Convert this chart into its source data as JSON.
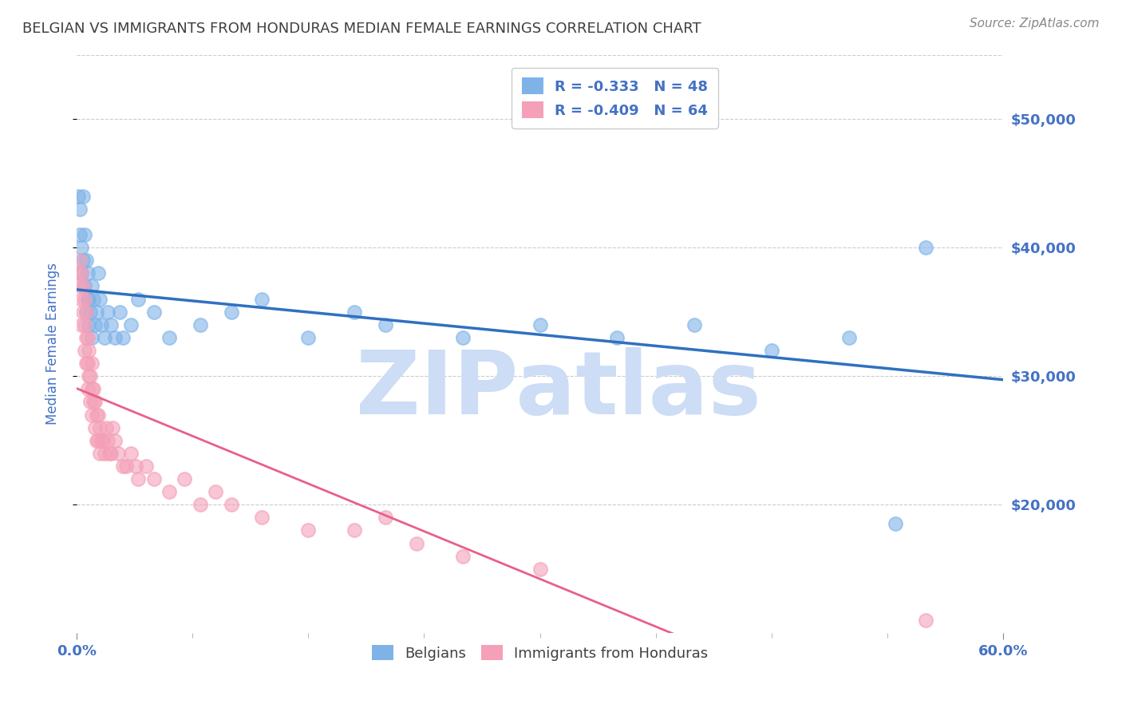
{
  "title": "BELGIAN VS IMMIGRANTS FROM HONDURAS MEDIAN FEMALE EARNINGS CORRELATION CHART",
  "source": "Source: ZipAtlas.com",
  "ylabel": "Median Female Earnings",
  "y_tick_labels": [
    "$20,000",
    "$30,000",
    "$40,000",
    "$50,000"
  ],
  "y_tick_values": [
    20000,
    30000,
    40000,
    50000
  ],
  "ylim": [
    10000,
    55000
  ],
  "xlim": [
    0.0,
    0.6
  ],
  "legend_labels": [
    "Belgians",
    "Immigrants from Honduras"
  ],
  "r_belgian": "-0.333",
  "n_belgian": "48",
  "r_honduras": "-0.409",
  "n_honduras": "64",
  "blue_scatter_color": "#7fb3e8",
  "pink_scatter_color": "#f4a0b8",
  "blue_line_color": "#3070c0",
  "pink_line_color": "#e8608a",
  "axis_label_color": "#4472c4",
  "title_color": "#404040",
  "watermark_text": "ZIPatlas",
  "watermark_color": "#ccddf5",
  "grid_color": "#cccccc",
  "background_color": "#ffffff",
  "belgians_x": [
    0.001,
    0.002,
    0.002,
    0.003,
    0.003,
    0.004,
    0.004,
    0.005,
    0.005,
    0.006,
    0.006,
    0.007,
    0.007,
    0.008,
    0.008,
    0.009,
    0.01,
    0.01,
    0.011,
    0.012,
    0.013,
    0.014,
    0.015,
    0.016,
    0.018,
    0.02,
    0.022,
    0.025,
    0.028,
    0.03,
    0.035,
    0.04,
    0.05,
    0.06,
    0.08,
    0.1,
    0.12,
    0.15,
    0.18,
    0.2,
    0.25,
    0.3,
    0.35,
    0.4,
    0.45,
    0.5,
    0.53,
    0.55
  ],
  "belgians_y": [
    44000,
    43000,
    41000,
    40000,
    38000,
    44000,
    39000,
    41000,
    37000,
    35000,
    39000,
    36000,
    38000,
    34000,
    36000,
    35000,
    37000,
    33000,
    36000,
    34000,
    35000,
    38000,
    36000,
    34000,
    33000,
    35000,
    34000,
    33000,
    35000,
    33000,
    34000,
    36000,
    35000,
    33000,
    34000,
    35000,
    36000,
    33000,
    35000,
    34000,
    33000,
    34000,
    33000,
    34000,
    32000,
    33000,
    18500,
    40000
  ],
  "honduras_x": [
    0.001,
    0.002,
    0.002,
    0.003,
    0.003,
    0.003,
    0.004,
    0.004,
    0.005,
    0.005,
    0.005,
    0.006,
    0.006,
    0.006,
    0.007,
    0.007,
    0.007,
    0.008,
    0.008,
    0.009,
    0.009,
    0.01,
    0.01,
    0.01,
    0.011,
    0.011,
    0.012,
    0.012,
    0.013,
    0.013,
    0.014,
    0.014,
    0.015,
    0.015,
    0.016,
    0.017,
    0.018,
    0.019,
    0.02,
    0.021,
    0.022,
    0.023,
    0.025,
    0.027,
    0.03,
    0.032,
    0.035,
    0.038,
    0.04,
    0.045,
    0.05,
    0.06,
    0.07,
    0.08,
    0.09,
    0.1,
    0.12,
    0.15,
    0.18,
    0.2,
    0.22,
    0.25,
    0.3,
    0.55
  ],
  "honduras_y": [
    38000,
    39000,
    37000,
    38000,
    36000,
    34000,
    37000,
    35000,
    36000,
    34000,
    32000,
    35000,
    33000,
    31000,
    33000,
    31000,
    29000,
    32000,
    30000,
    30000,
    28000,
    31000,
    29000,
    27000,
    29000,
    28000,
    28000,
    26000,
    27000,
    25000,
    27000,
    25000,
    26000,
    24000,
    25000,
    25000,
    24000,
    26000,
    25000,
    24000,
    24000,
    26000,
    25000,
    24000,
    23000,
    23000,
    24000,
    23000,
    22000,
    23000,
    22000,
    21000,
    22000,
    20000,
    21000,
    20000,
    19000,
    18000,
    18000,
    19000,
    17000,
    16000,
    15000,
    11000
  ]
}
